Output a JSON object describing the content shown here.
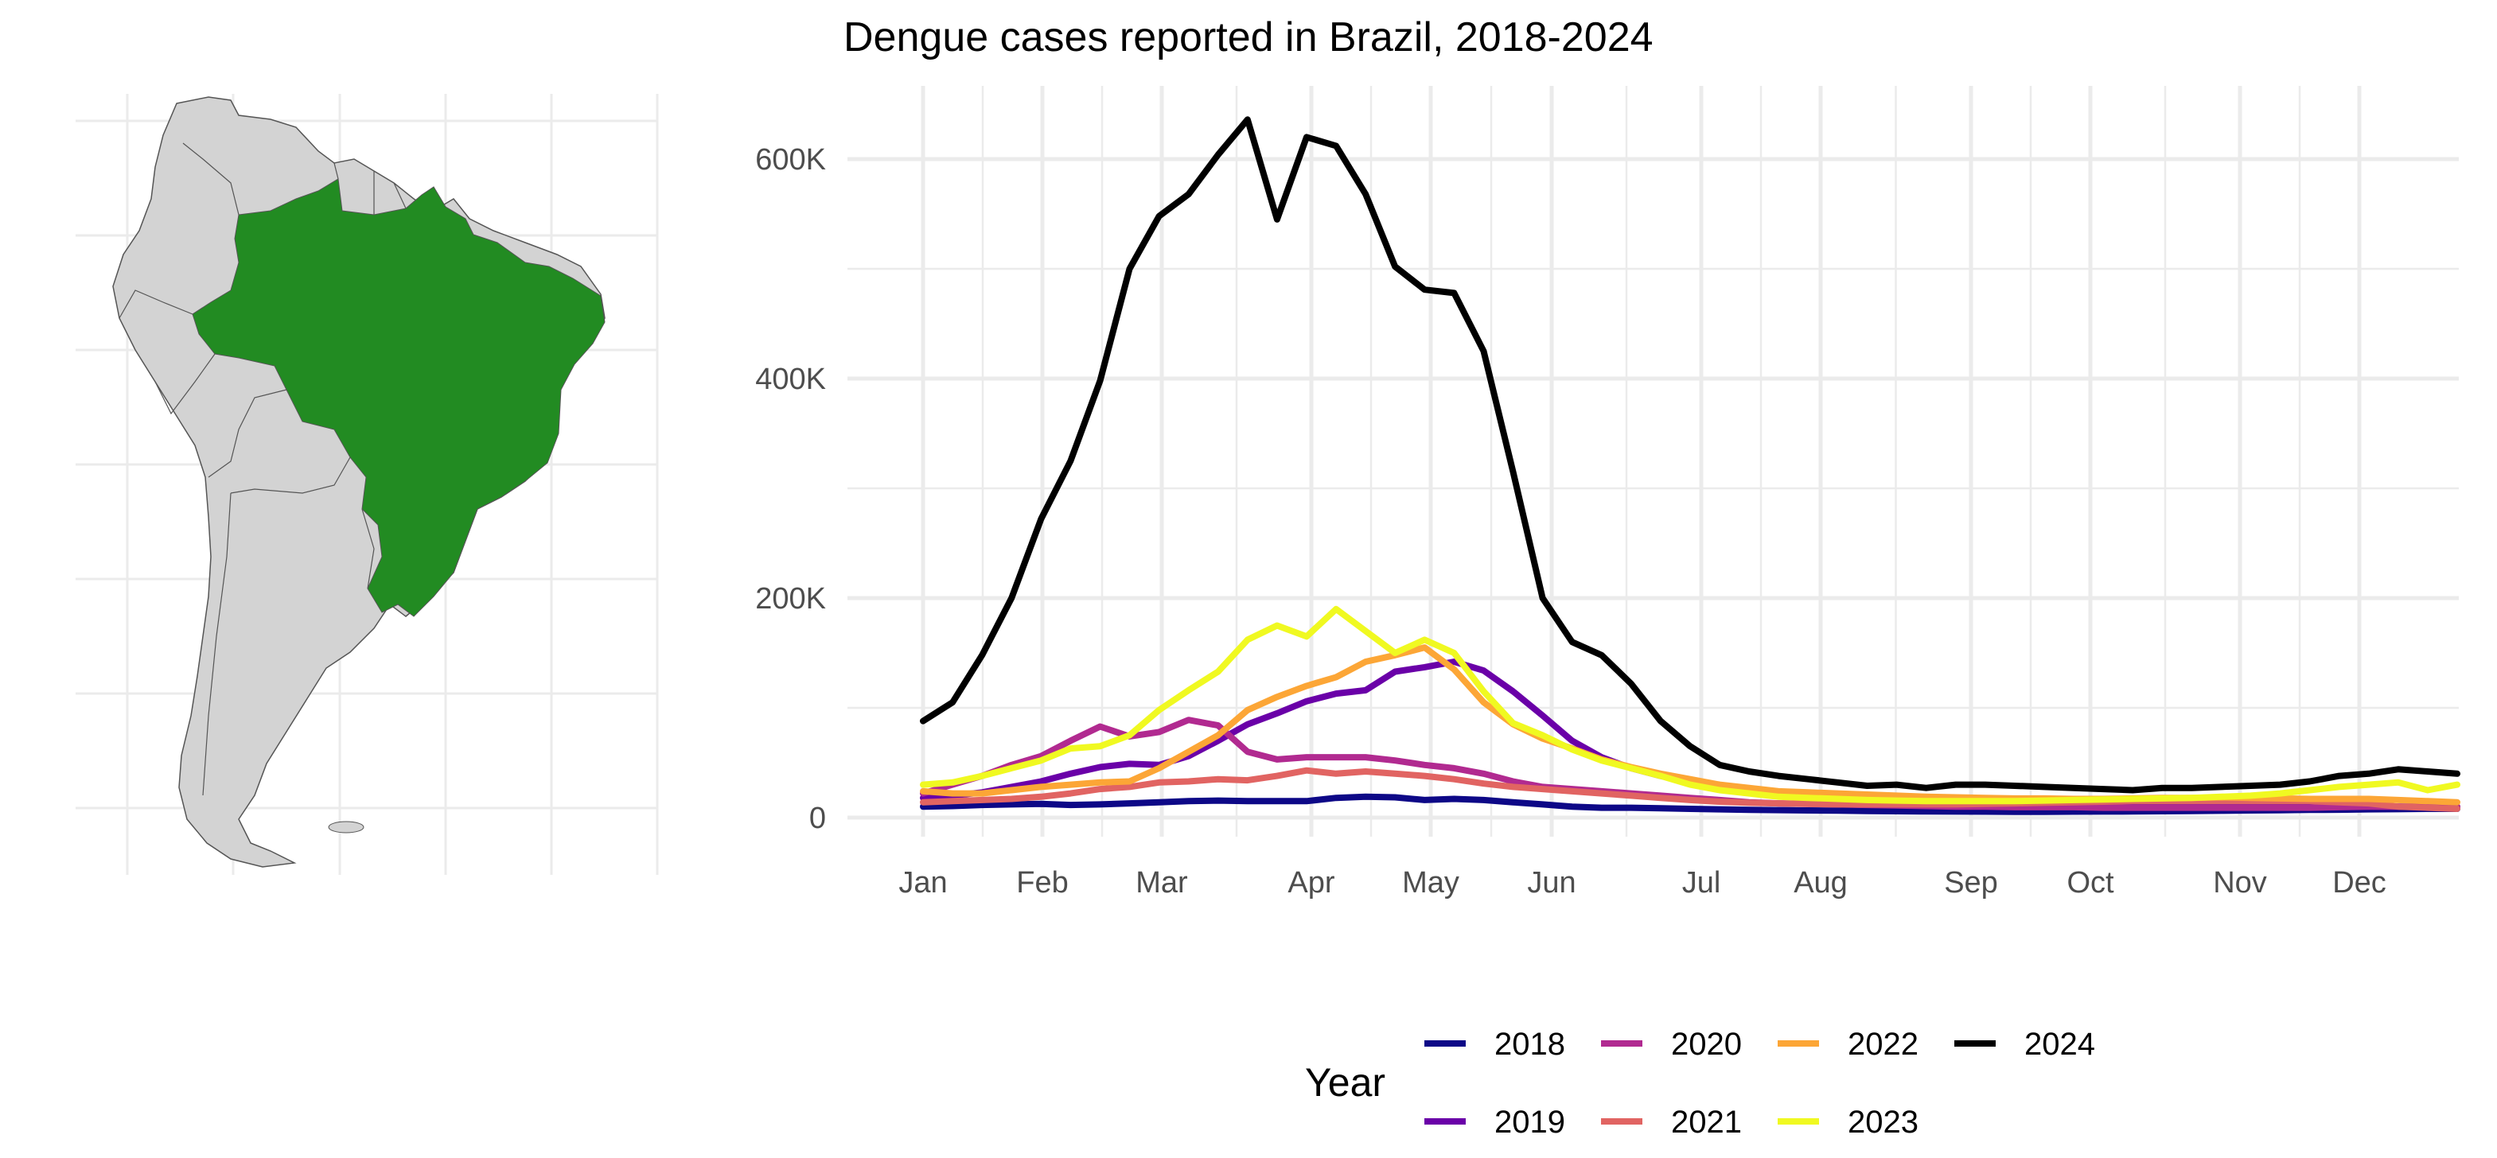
{
  "colors": {
    "brazil": "#228B22",
    "other_countries": "#d3d3d3",
    "border": "#555555",
    "grid": "#ebebeb"
  },
  "map": {
    "highlighted_country": "Brazil"
  },
  "chart_data": {
    "type": "line",
    "title": "Dengue cases reported in Brazil, 2018-2024",
    "xlabel": "",
    "ylabel": "",
    "x_ticks": [
      "Jan",
      "Feb",
      "Mar",
      "Apr",
      "May",
      "Jun",
      "Jul",
      "Aug",
      "Sep",
      "Oct",
      "Nov",
      "Dec"
    ],
    "x_unit": "epidemiological week",
    "x": [
      1,
      2,
      3,
      4,
      5,
      6,
      7,
      8,
      9,
      10,
      11,
      12,
      13,
      14,
      15,
      16,
      17,
      18,
      19,
      20,
      21,
      22,
      23,
      24,
      25,
      26,
      27,
      28,
      29,
      30,
      31,
      32,
      33,
      34,
      35,
      36,
      37,
      38,
      39,
      40,
      41,
      42,
      43,
      44,
      45,
      46,
      47,
      48,
      49,
      50,
      51,
      52,
      53
    ],
    "xlim": [
      1,
      53
    ],
    "ylim": [
      0,
      660000
    ],
    "y_ticks": [
      0,
      200000,
      400000,
      600000
    ],
    "y_tick_labels": [
      "0",
      "200K",
      "400K",
      "600K"
    ],
    "grid": true,
    "legend": {
      "title": "Year",
      "position": "bottom"
    },
    "series": [
      {
        "name": "2018",
        "color": "#0d0887",
        "values": [
          10000,
          10500,
          11500,
          12000,
          12500,
          11500,
          12000,
          13000,
          14000,
          15000,
          15500,
          15000,
          15000,
          15000,
          18000,
          19000,
          18500,
          16000,
          17000,
          16000,
          14000,
          12000,
          10000,
          9000,
          9000,
          8500,
          8000,
          7500,
          7000,
          6800,
          6500,
          6300,
          6000,
          5800,
          5600,
          5500,
          5400,
          5300,
          5300,
          5400,
          5500,
          5600,
          5800,
          6000,
          6200,
          6500,
          6700,
          7000,
          7200,
          7500,
          7700,
          8000,
          8000
        ]
      },
      {
        "name": "2019",
        "color": "#6a00a8",
        "values": [
          18000,
          20000,
          23000,
          28000,
          33000,
          40000,
          46000,
          49000,
          48000,
          56000,
          70000,
          85000,
          95000,
          106000,
          113000,
          116000,
          133000,
          137000,
          142000,
          134000,
          115000,
          93000,
          70000,
          55000,
          45000,
          38000,
          32000,
          28000,
          24000,
          21000,
          19000,
          17000,
          16000,
          15000,
          14000,
          13000,
          12500,
          12000,
          11500,
          11000,
          11000,
          10500,
          10500,
          10000,
          10000,
          10000,
          10000,
          10000,
          10000,
          10000,
          10000,
          10000,
          10000
        ]
      },
      {
        "name": "2020",
        "color": "#b12a90",
        "values": [
          22000,
          30000,
          38000,
          48000,
          56000,
          70000,
          83000,
          74000,
          78000,
          89000,
          84000,
          60000,
          53000,
          55000,
          55000,
          55000,
          52000,
          48000,
          45000,
          40000,
          33000,
          28000,
          26000,
          24000,
          22000,
          20000,
          18000,
          16000,
          14000,
          13000,
          12500,
          12000,
          11500,
          11000,
          10500,
          10000,
          10000,
          9500,
          9500,
          9500,
          9000,
          9000,
          9000,
          9000,
          9000,
          9000,
          9000,
          9000,
          9500,
          10000,
          10000,
          10000,
          10000
        ]
      },
      {
        "name": "2021",
        "color": "#e16462",
        "values": [
          14000,
          15000,
          16000,
          17000,
          19000,
          22000,
          26000,
          28000,
          32000,
          33000,
          35000,
          34000,
          38000,
          43000,
          40000,
          42000,
          40000,
          38000,
          35000,
          31000,
          28000,
          26000,
          24000,
          22000,
          20000,
          18000,
          16000,
          14500,
          13500,
          13000,
          12500,
          12000,
          12000,
          12000,
          12000,
          12000,
          12500,
          13000,
          13500,
          14000,
          14500,
          15000,
          15000,
          15000,
          15000,
          15000,
          15000,
          15000,
          14000,
          13000,
          10000,
          9000,
          8000
        ]
      },
      {
        "name": "2022",
        "color": "#fca636",
        "values": [
          24000,
          22000,
          22000,
          25000,
          28000,
          30000,
          32000,
          33000,
          45000,
          60000,
          75000,
          98000,
          110000,
          120000,
          128000,
          142000,
          148000,
          155000,
          135000,
          105000,
          85000,
          72000,
          63000,
          53000,
          46000,
          40000,
          35000,
          30000,
          27000,
          24000,
          23000,
          22000,
          21000,
          20000,
          19000,
          18500,
          18000,
          17500,
          17500,
          17000,
          17000,
          17500,
          18000,
          18000,
          18500,
          18000,
          17500,
          17000,
          17000,
          17000,
          16000,
          15000,
          14000
        ]
      },
      {
        "name": "2023",
        "color": "#f0f921",
        "values": [
          30000,
          32000,
          38000,
          45000,
          52000,
          63000,
          65000,
          75000,
          98000,
          116000,
          133000,
          162000,
          175000,
          165000,
          190000,
          170000,
          150000,
          162000,
          150000,
          115000,
          86000,
          75000,
          62000,
          52000,
          45000,
          38000,
          30000,
          25000,
          22000,
          19000,
          18000,
          17000,
          16000,
          15500,
          15000,
          15000,
          15000,
          15000,
          15500,
          16000,
          16500,
          17000,
          17500,
          18000,
          19000,
          20000,
          22000,
          25000,
          28000,
          30000,
          32000,
          25000,
          30000
        ]
      },
      {
        "name": "2024",
        "color": "#000000",
        "values": [
          88000,
          105000,
          148000,
          200000,
          272000,
          325000,
          398000,
          500000,
          548000,
          568000,
          604000,
          636000,
          545000,
          620000,
          612000,
          568000,
          502000,
          481000,
          478000,
          425000,
          315000,
          200000,
          160000,
          148000,
          122000,
          88000,
          65000,
          48000,
          42000,
          38000,
          35000,
          32000,
          29000,
          30000,
          27000,
          30000,
          30000,
          29000,
          28000,
          27000,
          26000,
          25000,
          27000,
          27000,
          28000,
          29000,
          30000,
          33000,
          38000,
          40000,
          44000,
          42000,
          40000
        ]
      }
    ]
  }
}
